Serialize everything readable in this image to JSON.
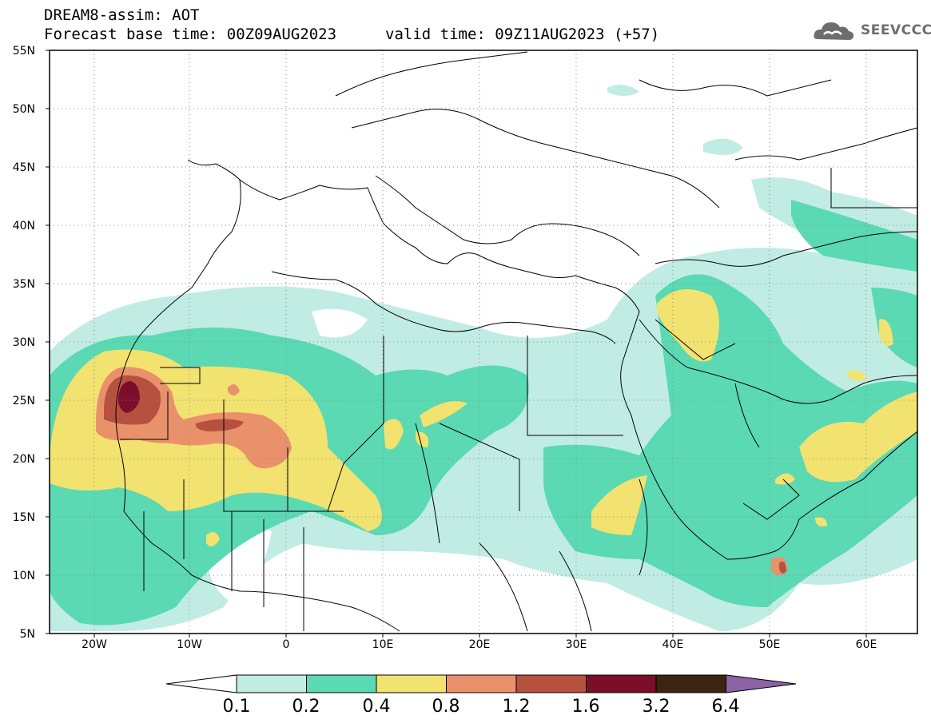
{
  "title": {
    "line1": "DREAM8-assim: AOT",
    "line2": "Forecast base time: 00Z09AUG2023",
    "valid": "valid time: 09Z11AUG2023 (+57)"
  },
  "logo": {
    "text": "SEEVCCC",
    "icon": "cloud-icon",
    "color": "#6d6d6d"
  },
  "map_data": {
    "projection": "equirectangular",
    "lon_range": [
      -25,
      65
    ],
    "lat_range": [
      5,
      55
    ],
    "lat_labels": [
      "55N",
      "50N",
      "45N",
      "40N",
      "35N",
      "30N",
      "25N",
      "20N",
      "15N",
      "10N",
      "5N"
    ],
    "lon_labels": [
      "20W",
      "10W",
      "0",
      "10E",
      "20E",
      "30E",
      "40E",
      "50E",
      "60E"
    ],
    "lat_ticks": [
      55,
      50,
      45,
      40,
      35,
      30,
      25,
      20,
      15,
      10,
      5
    ],
    "lon_ticks": [
      -20,
      -10,
      0,
      10,
      20,
      30,
      40,
      50,
      60
    ],
    "grid": "dotted",
    "variable": "Aerosol Optical Thickness"
  },
  "colorbar": {
    "labels": [
      "0.1",
      "0.2",
      "0.4",
      "0.8",
      "1.2",
      "1.6",
      "3.2",
      "6.4"
    ],
    "colors": [
      "#c0ece3",
      "#5ad9b3",
      "#f2e270",
      "#e9916a",
      "#b6503f",
      "#7a0e2b",
      "#3b2412",
      "#8c63a6"
    ],
    "below_color": "#ffffff"
  }
}
